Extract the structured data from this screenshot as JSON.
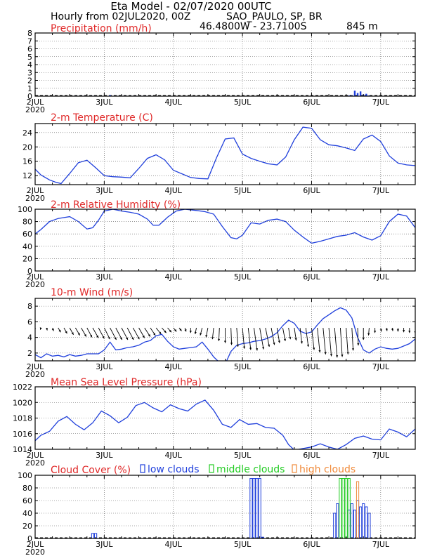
{
  "header": {
    "title": "Eta Model - 02/07/2020 00UTC",
    "subtitle": "Hourly from 02JUL2020, 00Z",
    "location": "SAO_PAULO, SP, BR",
    "coords": "46.4800W - 23.7100S",
    "elevation": "845  m"
  },
  "colors": {
    "title": "#1c3ccf",
    "subtitle": "#e8782a",
    "panel_title": "#e02a2a",
    "series": "#1f3fdc",
    "low": "#1f3fdc",
    "middle": "#22cc22",
    "high": "#f08a3a",
    "wind": "#000000"
  },
  "x_axis": {
    "tick_labels": [
      "2JUL",
      "3JUL",
      "4JUL",
      "5JUL",
      "6JUL",
      "7JUL"
    ],
    "year_label": "2020",
    "range_hours": [
      0,
      132
    ]
  },
  "chart_data": [
    {
      "id": "precip",
      "type": "bar",
      "title": "Precipitation (mm/h)",
      "ylim": [
        0,
        8
      ],
      "yticks": [
        "0",
        "1",
        "2",
        "3",
        "4",
        "5",
        "6",
        "7",
        "8"
      ],
      "hours": [
        14,
        15,
        16,
        17,
        18,
        19,
        20,
        21,
        26,
        27,
        28,
        29,
        30,
        31,
        32,
        33,
        34,
        35,
        36,
        37,
        38,
        39,
        40,
        109,
        110,
        111,
        112,
        113,
        114,
        115,
        116
      ],
      "values": [
        0.05,
        0.05,
        0.05,
        0.05,
        0.05,
        0.05,
        0.05,
        0.05,
        0.15,
        0.05,
        0.05,
        0.05,
        0.05,
        0.05,
        0.05,
        0.05,
        0.05,
        0.05,
        0.05,
        0.05,
        0.05,
        0.05,
        0.05,
        0.1,
        0.1,
        0.7,
        0.4,
        0.6,
        0.2,
        0.3,
        0.1
      ]
    },
    {
      "id": "temp",
      "type": "line",
      "title": "2-m Temperature (C)",
      "ylim": [
        9.5,
        26.5
      ],
      "yticks": [
        "12",
        "16",
        "20",
        "24"
      ],
      "x": [
        0,
        2,
        5,
        7,
        9,
        12,
        15,
        18,
        21,
        24,
        27,
        30,
        33,
        36,
        39,
        42,
        45,
        48,
        51,
        54,
        57,
        60,
        63,
        66,
        69,
        72,
        75,
        78,
        81,
        84,
        87,
        90,
        93,
        96,
        99,
        102,
        105,
        108,
        111,
        114,
        117,
        120,
        123,
        126,
        129,
        132
      ],
      "values": [
        13.8,
        12.2,
        10.8,
        10.2,
        9.8,
        12.6,
        15.6,
        16.3,
        14.2,
        12.0,
        11.7,
        11.6,
        11.4,
        14.0,
        16.8,
        17.8,
        16.4,
        13.5,
        12.5,
        11.5,
        11.2,
        11.1,
        17.0,
        22.2,
        22.5,
        18.0,
        16.8,
        16.0,
        15.3,
        15.0,
        17.2,
        22.0,
        25.5,
        25.2,
        22.0,
        20.6,
        20.3,
        19.7,
        19.0,
        22.2,
        23.3,
        21.5,
        17.5,
        15.5,
        15.0,
        14.8
      ]
    },
    {
      "id": "rh",
      "type": "line",
      "title": "2-m Relative Humidity (%)",
      "ylim": [
        0,
        100
      ],
      "yticks": [
        "0",
        "20",
        "40",
        "60",
        "80",
        "100"
      ],
      "x": [
        0,
        2,
        5,
        8,
        12,
        15,
        18,
        20,
        22,
        24,
        27,
        30,
        33,
        36,
        39,
        41,
        43,
        46,
        49,
        52,
        56,
        59,
        62,
        65,
        68,
        70,
        72,
        75,
        78,
        81,
        84,
        87,
        90,
        93,
        96,
        99,
        102,
        105,
        108,
        111,
        114,
        117,
        120,
        123,
        126,
        129,
        132
      ],
      "values": [
        60,
        67,
        80,
        85,
        88,
        80,
        68,
        70,
        82,
        97,
        100,
        97,
        95,
        92,
        84,
        74,
        74,
        87,
        97,
        100,
        98,
        96,
        92,
        72,
        54,
        52,
        58,
        78,
        76,
        82,
        84,
        80,
        66,
        55,
        45,
        48,
        52,
        56,
        58,
        62,
        55,
        50,
        57,
        80,
        92,
        89,
        70
      ]
    },
    {
      "id": "wind",
      "type": "line",
      "title": "10-m Wind (m/s)",
      "ylim": [
        1,
        9
      ],
      "yticks": [
        "2",
        "4",
        "6",
        "8"
      ],
      "x": [
        0,
        2,
        4,
        6,
        8,
        10,
        12,
        14,
        16,
        18,
        20,
        22,
        24,
        26,
        28,
        30,
        32,
        34,
        36,
        38,
        40,
        42,
        44,
        46,
        48,
        50,
        52,
        54,
        56,
        58,
        60,
        62,
        64,
        66,
        68,
        70,
        72,
        74,
        76,
        78,
        80,
        82,
        84,
        86,
        88,
        90,
        92,
        94,
        96,
        98,
        100,
        102,
        104,
        106,
        108,
        110,
        112,
        114,
        116,
        118,
        120,
        122,
        124,
        126,
        128,
        130,
        132
      ],
      "values": [
        1.8,
        1.4,
        1.9,
        1.6,
        1.7,
        1.5,
        1.8,
        1.6,
        1.7,
        1.9,
        1.9,
        1.9,
        2.4,
        3.4,
        2.4,
        2.5,
        2.7,
        2.8,
        3.0,
        3.4,
        3.6,
        4.2,
        4.4,
        3.5,
        2.8,
        2.5,
        2.6,
        2.7,
        2.8,
        3.4,
        2.5,
        1.5,
        0.8,
        0.6,
        2.2,
        3.0,
        3.2,
        3.3,
        3.5,
        3.6,
        3.8,
        4.1,
        4.6,
        5.5,
        6.2,
        5.8,
        4.8,
        4.5,
        4.7,
        5.6,
        6.4,
        6.9,
        7.4,
        7.8,
        7.5,
        6.5,
        4.0,
        2.4,
        2.0,
        2.5,
        2.8,
        2.6,
        2.5,
        2.6,
        2.9,
        3.2,
        3.8
      ],
      "vectors_u": [
        -0.2,
        -0.1,
        0.1,
        0.2,
        0.4,
        0.5,
        0.6,
        0.7,
        0.8,
        0.8,
        0.9,
        0.9,
        0.9,
        1.0,
        1.0,
        1.0,
        1.0,
        1.0,
        0.9,
        0.9,
        0.8,
        0.8,
        0.7,
        0.6,
        0.5,
        0.4,
        0.2,
        0.0,
        -0.2,
        -0.3,
        -0.3,
        -0.2,
        -0.1,
        0.0,
        0.1,
        0.2,
        0.3,
        0.4,
        0.5,
        0.6,
        0.6,
        0.5,
        0.4,
        0.4,
        0.3,
        0.3,
        0.3,
        0.4,
        0.4,
        0.4,
        0.4,
        0.4,
        0.4,
        0.3,
        0.3,
        0.2,
        0.1,
        0.0,
        -0.1,
        0.0,
        0.1,
        0.1,
        0.1,
        0.0,
        0.0,
        0.0,
        0.0
      ],
      "vectors_v": [
        -0.3,
        -0.3,
        -0.4,
        -0.5,
        -0.7,
        -0.9,
        -1.1,
        -1.2,
        -1.4,
        -1.5,
        -1.6,
        -1.7,
        -1.8,
        -1.9,
        -1.9,
        -1.9,
        -1.9,
        -1.8,
        -1.6,
        -1.4,
        -1.2,
        -1.0,
        -0.8,
        -0.7,
        -0.6,
        -0.5,
        -0.6,
        -0.8,
        -1.0,
        -1.2,
        -1.5,
        -1.8,
        -2.1,
        -2.4,
        -2.7,
        -3.0,
        -3.3,
        -3.5,
        -3.6,
        -3.4,
        -3.0,
        -2.7,
        -2.4,
        -2.1,
        -1.8,
        -2.0,
        -2.5,
        -3.0,
        -3.5,
        -3.9,
        -4.2,
        -4.5,
        -4.7,
        -4.6,
        -4.2,
        -3.6,
        -2.8,
        -1.9,
        -1.2,
        -0.8,
        -0.6,
        -0.5,
        -0.5,
        -0.6,
        -0.7,
        -0.8,
        -0.9
      ]
    },
    {
      "id": "mslp",
      "type": "line",
      "title": "Mean Sea Level Pressure (hPa)",
      "ylim": [
        1014,
        1022
      ],
      "yticks": [
        "1014",
        "1016",
        "1018",
        "1020",
        "1022"
      ],
      "x": [
        0,
        2,
        5,
        8,
        11,
        14,
        17,
        20,
        23,
        26,
        29,
        32,
        35,
        38,
        41,
        44,
        47,
        50,
        53,
        56,
        59,
        62,
        65,
        68,
        71,
        74,
        77,
        80,
        83,
        86,
        88,
        90,
        93,
        96,
        99,
        102,
        105,
        108,
        111,
        114,
        117,
        120,
        123,
        126,
        129,
        132
      ],
      "values": [
        1015.1,
        1015.8,
        1016.3,
        1017.6,
        1018.2,
        1017.2,
        1016.5,
        1017.4,
        1018.9,
        1018.3,
        1017.4,
        1018.1,
        1019.6,
        1020.0,
        1019.3,
        1018.8,
        1019.7,
        1019.2,
        1018.9,
        1019.8,
        1020.3,
        1019.0,
        1017.2,
        1016.8,
        1017.8,
        1017.2,
        1017.3,
        1016.8,
        1016.7,
        1015.8,
        1014.6,
        1013.9,
        1014.1,
        1014.3,
        1014.7,
        1014.3,
        1014.0,
        1014.6,
        1015.4,
        1015.7,
        1015.3,
        1015.2,
        1016.6,
        1016.2,
        1015.6,
        1016.6
      ]
    },
    {
      "id": "clouds",
      "type": "bar",
      "title": "Cloud Cover (%)",
      "ylim": [
        0,
        100
      ],
      "yticks": [
        "0",
        "20",
        "40",
        "60",
        "80",
        "100"
      ],
      "legend": [
        "low clouds",
        "middle clouds",
        "high clouds"
      ],
      "series": [
        {
          "name": "low clouds",
          "hours": [
            20,
            21,
            75,
            76,
            77,
            78,
            79,
            104,
            105,
            109,
            110,
            111,
            112,
            113,
            114,
            115,
            116
          ],
          "values": [
            8,
            8,
            95,
            95,
            95,
            95,
            2,
            40,
            55,
            45,
            55,
            45,
            60,
            50,
            55,
            50,
            40
          ]
        },
        {
          "name": "middle clouds",
          "hours": [
            106,
            107,
            108,
            109
          ],
          "values": [
            95,
            95,
            95,
            95
          ]
        },
        {
          "name": "high clouds",
          "hours": [
            112
          ],
          "values": [
            90
          ]
        }
      ]
    }
  ]
}
